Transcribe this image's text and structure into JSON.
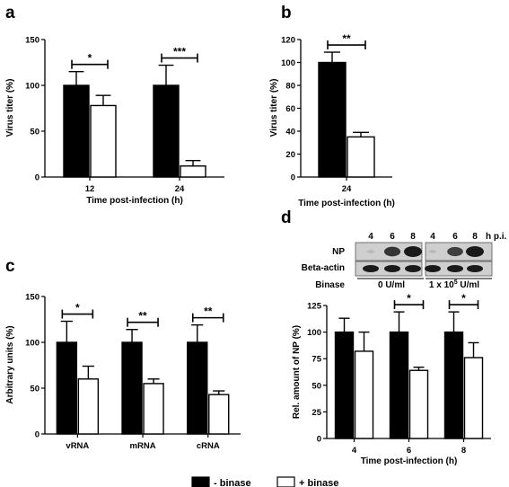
{
  "colors": {
    "minus_binase": "#000000",
    "plus_binase": "#ffffff",
    "axis": "#000000",
    "blot_band": "#1a1a1a",
    "blot_bg": "#cfcfcf"
  },
  "legend": {
    "items": [
      {
        "label": "- binase",
        "fill": "#000000"
      },
      {
        "label": "+ binase",
        "fill": "#ffffff"
      }
    ]
  },
  "panels": [
    {
      "letter": "a"
    },
    {
      "letter": "b"
    },
    {
      "letter": "c"
    },
    {
      "letter": "d"
    }
  ],
  "chart_data": [
    {
      "panel": "a",
      "type": "bar",
      "xlabel": "Time post-infection (h)",
      "ylabel": "Virus titer (%)",
      "categories": [
        "12",
        "24"
      ],
      "ylim": [
        0,
        150
      ],
      "yticks": [
        "0",
        "50",
        "100",
        "150"
      ],
      "series": [
        {
          "name": "- binase",
          "values": [
            100,
            100
          ],
          "errors": [
            15,
            22
          ]
        },
        {
          "name": "+ binase",
          "values": [
            78,
            12
          ],
          "errors": [
            11,
            6
          ]
        }
      ],
      "significance": [
        "*",
        "***"
      ]
    },
    {
      "panel": "b",
      "type": "bar",
      "xlabel": "Time post-infection (h)",
      "ylabel": "Virus titer (%)",
      "categories": [
        "24"
      ],
      "ylim": [
        0,
        120
      ],
      "yticks": [
        "0",
        "20",
        "40",
        "60",
        "80",
        "100",
        "120"
      ],
      "series": [
        {
          "name": "- binase",
          "values": [
            100
          ],
          "errors": [
            9
          ]
        },
        {
          "name": "+ binase",
          "values": [
            35
          ],
          "errors": [
            4
          ]
        }
      ],
      "significance": [
        "**"
      ]
    },
    {
      "panel": "c",
      "type": "bar",
      "xlabel": "",
      "ylabel": "Arbitrary units (%)",
      "categories": [
        "vRNA",
        "mRNA",
        "cRNA"
      ],
      "ylim": [
        0,
        150
      ],
      "yticks": [
        "0",
        "50",
        "100",
        "150"
      ],
      "series": [
        {
          "name": "- binase",
          "values": [
            100,
            100,
            100
          ],
          "errors": [
            23,
            14,
            19
          ]
        },
        {
          "name": "+ binase",
          "values": [
            60,
            55,
            43
          ],
          "errors": [
            14,
            5,
            4
          ]
        }
      ],
      "significance": [
        "*",
        "**",
        "**"
      ]
    },
    {
      "panel": "d",
      "type": "bar",
      "xlabel": "Time post-infection (h)",
      "ylabel": "Rel. amount of NP (%)",
      "categories": [
        "4",
        "6",
        "8"
      ],
      "ylim": [
        0,
        125
      ],
      "yticks": [
        "0",
        "25",
        "50",
        "75",
        "100",
        "125"
      ],
      "series": [
        {
          "name": "- binase",
          "values": [
            100,
            100,
            100
          ],
          "errors": [
            13,
            19,
            19
          ]
        },
        {
          "name": "+ binase",
          "values": [
            82,
            64,
            76
          ],
          "errors": [
            18,
            3,
            14
          ]
        }
      ],
      "significance": [
        "",
        "*",
        "*"
      ]
    }
  ],
  "blot": {
    "lanes": [
      "4",
      "6",
      "8",
      "4",
      "6",
      "8"
    ],
    "lane_suffix": "h p.i.",
    "rows": [
      {
        "label": "NP",
        "intensity": [
          0.05,
          0.85,
          1.0,
          0.05,
          0.8,
          1.0
        ]
      },
      {
        "label": "Beta-actin",
        "intensity": [
          1,
          1,
          1,
          1,
          1,
          1
        ]
      }
    ],
    "treatment_label": "Binase",
    "treatment_groups": [
      "0 U/ml",
      "1 x 10"
    ],
    "treatment_sup": "5",
    "treatment_unit": " U/ml"
  }
}
